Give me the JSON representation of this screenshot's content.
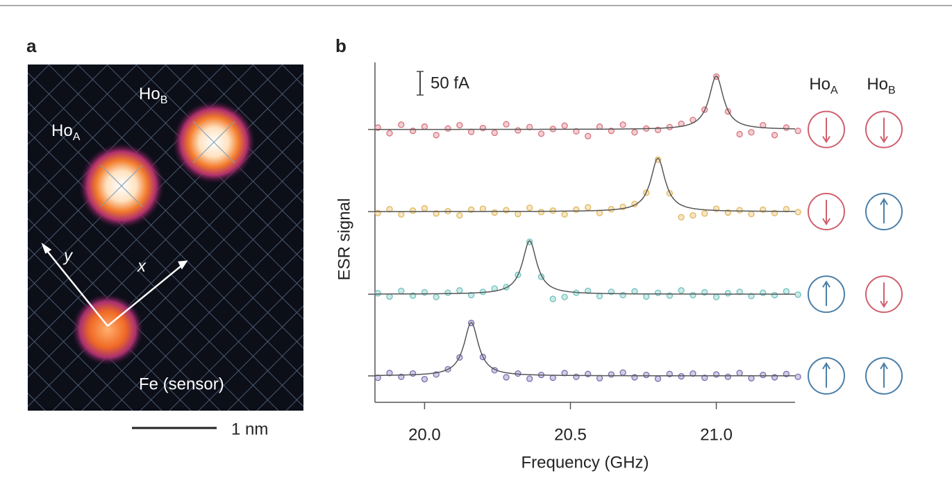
{
  "image_panel": {
    "panel_label": "a",
    "ho_a": {
      "text": "Ho",
      "sub": "A"
    },
    "ho_b": {
      "text": "Ho",
      "sub": "B"
    },
    "axis_y": "y",
    "axis_x": "x",
    "sensor": "Fe (sensor)",
    "scale_bar": "1 nm"
  },
  "chart_data": {
    "type": "scatter",
    "panel_label": "b",
    "x_label": "Frequency (GHz)",
    "y_label": "ESR signal",
    "xlim": [
      19.83,
      21.27
    ],
    "ylim": [
      0,
      720
    ],
    "xticks": [
      {
        "value": 20,
        "label": "20.0"
      },
      20.5,
      {
        "value": 21,
        "label": "21.0"
      }
    ],
    "scale_bar": {
      "value": 50,
      "label": "50 fA"
    },
    "columns": [
      {
        "text": "Ho",
        "sub": "A"
      },
      {
        "text": "Ho",
        "sub": "B"
      }
    ],
    "fit_color": "#555555",
    "x": [
      19.84,
      19.88,
      19.92,
      19.96,
      20.0,
      20.04,
      20.08,
      20.12,
      20.16,
      20.2,
      20.24,
      20.28,
      20.32,
      20.36,
      20.4,
      20.44,
      20.48,
      20.52,
      20.56,
      20.6,
      20.64,
      20.68,
      20.72,
      20.76,
      20.8,
      20.84,
      20.88,
      20.92,
      20.96,
      21.0,
      21.04,
      21.08,
      21.12,
      21.16,
      21.2,
      21.24,
      21.28
    ],
    "series": [
      {
        "color": "#d9737f",
        "offset": 578,
        "center": 21.0,
        "amplitude": 113,
        "width": 0.03,
        "values": [
          4,
          -8,
          10,
          -3,
          6,
          -12,
          2,
          9,
          -5,
          3,
          -7,
          11,
          -2,
          5,
          -9,
          1,
          8,
          -4,
          -14,
          6,
          -3,
          10,
          -6,
          2,
          -1,
          5,
          12,
          20,
          42,
          112,
          38,
          -10,
          -6,
          9,
          -12,
          4,
          -3
        ]
      },
      {
        "color": "#e2b65a",
        "offset": 404,
        "center": 20.8,
        "amplitude": 113,
        "width": 0.03,
        "values": [
          -3,
          5,
          -6,
          2,
          7,
          -4,
          1,
          -8,
          4,
          6,
          -2,
          3,
          -5,
          8,
          -1,
          2,
          -6,
          4,
          9,
          -3,
          5,
          10,
          16,
          40,
          110,
          39,
          -12,
          -8,
          -4,
          6,
          -2,
          3,
          -5,
          4,
          -3,
          5,
          -1
        ]
      },
      {
        "color": "#6cc2bd",
        "offset": 229,
        "center": 20.36,
        "amplitude": 113,
        "width": 0.03,
        "values": [
          2,
          -5,
          7,
          -3,
          4,
          -6,
          3,
          8,
          -2,
          5,
          12,
          15,
          41,
          111,
          37,
          -10,
          -6,
          3,
          7,
          -4,
          5,
          -2,
          6,
          -5,
          3,
          -3,
          8,
          -2,
          4,
          -6,
          2,
          5,
          -4,
          3,
          -2,
          6,
          -1
        ]
      },
      {
        "color": "#7a6fb3",
        "offset": 56,
        "center": 20.16,
        "amplitude": 113,
        "width": 0.03,
        "values": [
          -4,
          6,
          -2,
          5,
          -7,
          3,
          14,
          39,
          112,
          40,
          12,
          -3,
          5,
          -6,
          2,
          -4,
          6,
          -2,
          4,
          -5,
          3,
          7,
          -3,
          2,
          -6,
          4,
          -1,
          5,
          -4,
          3,
          -2,
          6,
          -5,
          2,
          -3,
          4,
          -2
        ]
      }
    ]
  }
}
